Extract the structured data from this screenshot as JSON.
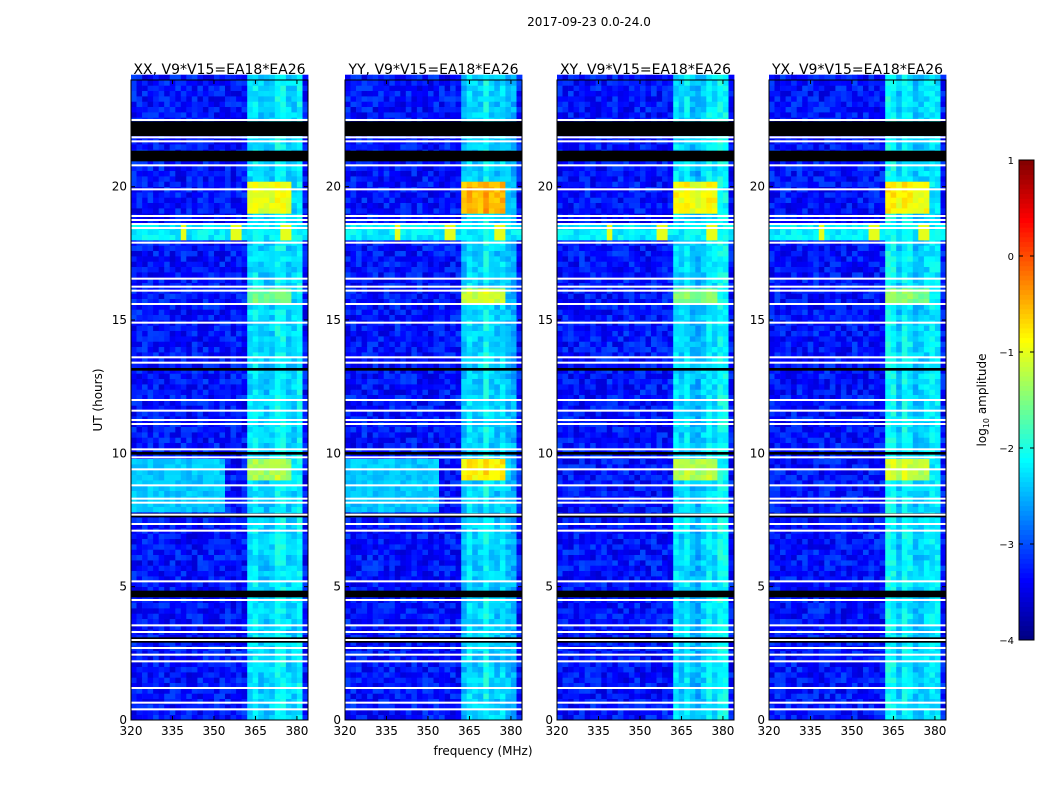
{
  "chart_data": {
    "type": "heatmap",
    "title": "2017-09-23 0.0-24.0",
    "xlabel": "frequency (MHz)",
    "ylabel": "UT (hours)",
    "xlim": [
      320,
      384
    ],
    "ylim": [
      0,
      24
    ],
    "xticks": [
      "320",
      "335",
      "350",
      "365",
      "380"
    ],
    "xtick_values": [
      320,
      335,
      350,
      365,
      380
    ],
    "yticks": [
      "0",
      "5",
      "10",
      "15",
      "20"
    ],
    "ytick_values": [
      0,
      5,
      10,
      15,
      20
    ],
    "colorbar": {
      "label_main": "log",
      "label_sub": "10",
      "label_rest": " amplitude",
      "range": [
        -4,
        1
      ],
      "ticks": [
        "1",
        "0",
        "−1",
        "−2",
        "−3",
        "−4"
      ],
      "tick_values": [
        1,
        0,
        -1,
        -2,
        -3,
        -4
      ],
      "colormap": "jet"
    },
    "background_level": -3.3,
    "rfi_band": {
      "freq": [
        362,
        383
      ],
      "level": -2.3
    },
    "rfi_row": {
      "time": [
        17.9,
        18.5
      ],
      "level": -2.2,
      "spike_freqs": [
        339,
        358,
        376
      ]
    },
    "black_rows": [
      [
        21.9,
        22.45
      ],
      [
        20.95,
        21.35
      ],
      [
        13.1,
        13.2
      ],
      [
        9.95,
        10.05
      ],
      [
        7.6,
        7.75
      ],
      [
        4.6,
        4.85
      ],
      [
        2.9,
        3.1
      ]
    ],
    "flagged_rows": [
      22.5,
      21.85,
      21.7,
      20.8,
      19.9,
      18.9,
      18.75,
      18.6,
      18.45,
      17.9,
      16.55,
      16.25,
      16.1,
      15.6,
      14.9,
      13.6,
      13.4,
      12.0,
      11.6,
      11.25,
      11.1,
      10.15,
      9.85,
      9.4,
      8.8,
      8.3,
      8.15,
      7.7,
      7.35,
      7.1,
      5.2,
      4.5,
      3.55,
      3.3,
      3.0,
      2.7,
      2.45,
      2.2,
      1.2,
      0.65,
      0.4
    ],
    "series": [
      {
        "name": "XX, V9*V15=EA18*EA26",
        "hot_level": -1.0,
        "hot_times": [
          [
            18.9,
            20.1
          ],
          [
            9.1,
            9.7
          ],
          [
            15.5,
            16.1
          ]
        ],
        "lowfreq_cyan": [
          7.8,
          9.8
        ]
      },
      {
        "name": "YY, V9*V15=EA18*EA26",
        "hot_level": -0.5,
        "hot_times": [
          [
            18.9,
            20.1
          ],
          [
            9.1,
            9.7
          ],
          [
            15.5,
            16.1
          ]
        ],
        "lowfreq_cyan": [
          7.8,
          9.8
        ]
      },
      {
        "name": "XY, V9*V15=EA18*EA26",
        "hot_level": -0.9,
        "hot_times": [
          [
            18.9,
            20.1
          ],
          [
            9.1,
            9.7
          ],
          [
            15.5,
            16.1
          ]
        ],
        "lowfreq_cyan": null
      },
      {
        "name": "YX, V9*V15=EA18*EA26",
        "hot_level": -0.9,
        "hot_times": [
          [
            18.9,
            20.1
          ],
          [
            9.1,
            9.7
          ],
          [
            15.5,
            16.1
          ]
        ],
        "lowfreq_cyan": null
      }
    ]
  }
}
